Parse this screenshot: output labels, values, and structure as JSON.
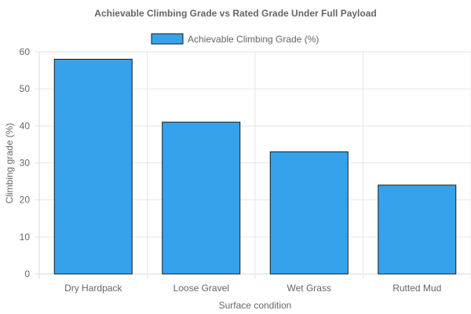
{
  "chart_data": {
    "type": "bar",
    "title": "Achievable Climbing Grade vs Rated Grade Under Full Payload",
    "xlabel": "Surface condition",
    "ylabel": "Climbing grade (%)",
    "categories": [
      "Dry Hardpack",
      "Loose Gravel",
      "Wet Grass",
      "Rutted Mud"
    ],
    "series": [
      {
        "name": "Achievable Climbing Grade (%)",
        "values": [
          58,
          41,
          33,
          24
        ],
        "color": "#36a2eb",
        "border_color": "#1a1a1a"
      }
    ],
    "ylim": [
      0,
      60
    ],
    "yticks": [
      0,
      10,
      20,
      30,
      40,
      50,
      60
    ],
    "grid": true,
    "legend_position": "top-center"
  }
}
